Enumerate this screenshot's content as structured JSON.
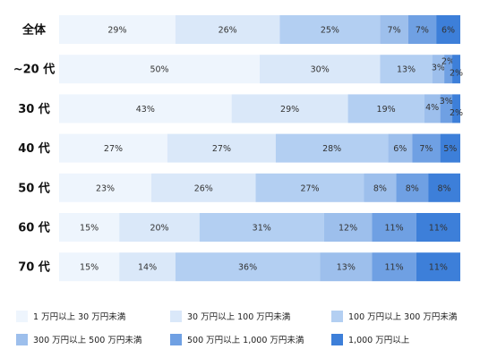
{
  "chart_data": {
    "type": "bar",
    "orientation": "horizontal",
    "stacked": "100%",
    "categories": [
      "全体",
      "~20 代",
      "30 代",
      "40 代",
      "50 代",
      "60 代",
      "70 代"
    ],
    "series": [
      {
        "name": "1 万円以上 30 万円未満",
        "color": "#EEF5FD",
        "values": [
          29,
          50,
          43,
          27,
          23,
          15,
          15
        ]
      },
      {
        "name": "30 万円以上 100 万円未満",
        "color": "#DAE8F9",
        "values": [
          26,
          30,
          29,
          27,
          26,
          20,
          14
        ]
      },
      {
        "name": "100 万円以上 300 万円未満",
        "color": "#B3CFF2",
        "values": [
          25,
          13,
          19,
          28,
          27,
          31,
          36
        ]
      },
      {
        "name": "300 万円以上 500 万円未満",
        "color": "#9DBFEC",
        "values": [
          7,
          3,
          4,
          6,
          8,
          12,
          13
        ]
      },
      {
        "name": "500 万円以上 1,000 万円未満",
        "color": "#6FA0E3",
        "values": [
          7,
          2,
          3,
          7,
          8,
          11,
          11
        ]
      },
      {
        "name": "1,000 万円以上",
        "color": "#3D7FD9",
        "values": [
          6,
          2,
          2,
          5,
          8,
          11,
          11
        ]
      }
    ],
    "value_labels": [
      [
        "29%",
        "26%",
        "25%",
        "7%",
        "7%",
        "6%"
      ],
      [
        "50%",
        "30%",
        "13%",
        "3%",
        "2%",
        "2%"
      ],
      [
        "43%",
        "29%",
        "19%",
        "4%",
        "3%",
        "2%"
      ],
      [
        "27%",
        "27%",
        "28%",
        "6%",
        "7%",
        "5%"
      ],
      [
        "23%",
        "26%",
        "27%",
        "8%",
        "8%",
        "8%"
      ],
      [
        "15%",
        "20%",
        "31%",
        "12%",
        "11%",
        "11%"
      ],
      [
        "15%",
        "14%",
        "36%",
        "13%",
        "11%",
        "11%"
      ]
    ],
    "xlim": [
      0,
      100
    ],
    "legend_position": "bottom",
    "grid": false
  }
}
